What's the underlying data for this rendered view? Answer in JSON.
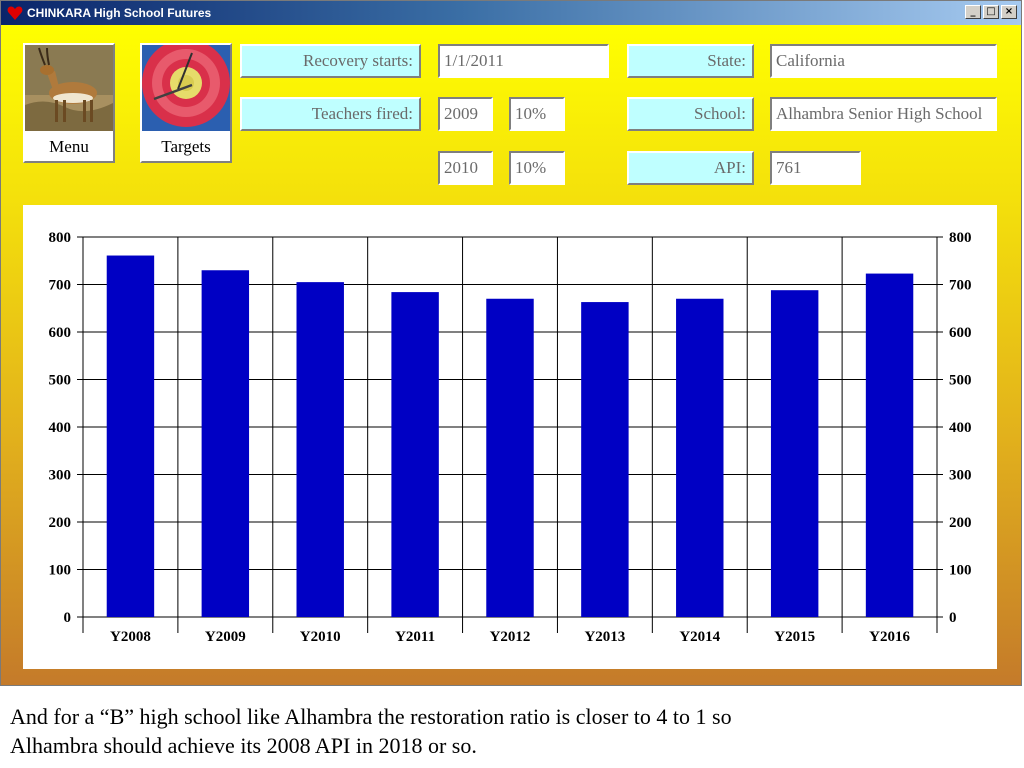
{
  "window": {
    "title": "CHINKARA High School Futures",
    "controls": {
      "minimize": "_",
      "maximize": "□",
      "close": "×"
    }
  },
  "tiles": [
    {
      "label": "Menu",
      "icon": "gazelle-icon"
    },
    {
      "label": "Targets",
      "icon": "target-icon"
    }
  ],
  "form": {
    "recovery_label": "Recovery starts:",
    "recovery_value": "1/1/2011",
    "teachers_label": "Teachers fired:",
    "teachers": [
      {
        "year": "2009",
        "percent": "10%"
      },
      {
        "year": "2010",
        "percent": "10%"
      }
    ],
    "state_label": "State:",
    "state_value": "California",
    "school_label": "School:",
    "school_value": "Alhambra Senior High School",
    "api_label": "API:",
    "api_value": "761"
  },
  "chart_data": {
    "type": "bar",
    "categories": [
      "Y2008",
      "Y2009",
      "Y2010",
      "Y2011",
      "Y2012",
      "Y2013",
      "Y2014",
      "Y2015",
      "Y2016"
    ],
    "values": [
      761,
      730,
      705,
      684,
      670,
      663,
      670,
      688,
      723
    ],
    "ylim": [
      0,
      800
    ],
    "yticks": [
      0,
      100,
      200,
      300,
      400,
      500,
      600,
      700,
      800
    ],
    "right_axis": true,
    "grid": true,
    "bar_color": "#0000c4"
  },
  "caption": {
    "line1": "And for a “B” high school like Alhambra the restoration ratio is closer to 4 to 1 so",
    "line2": "Alhambra should achieve its 2008 API in 2018 or so."
  }
}
